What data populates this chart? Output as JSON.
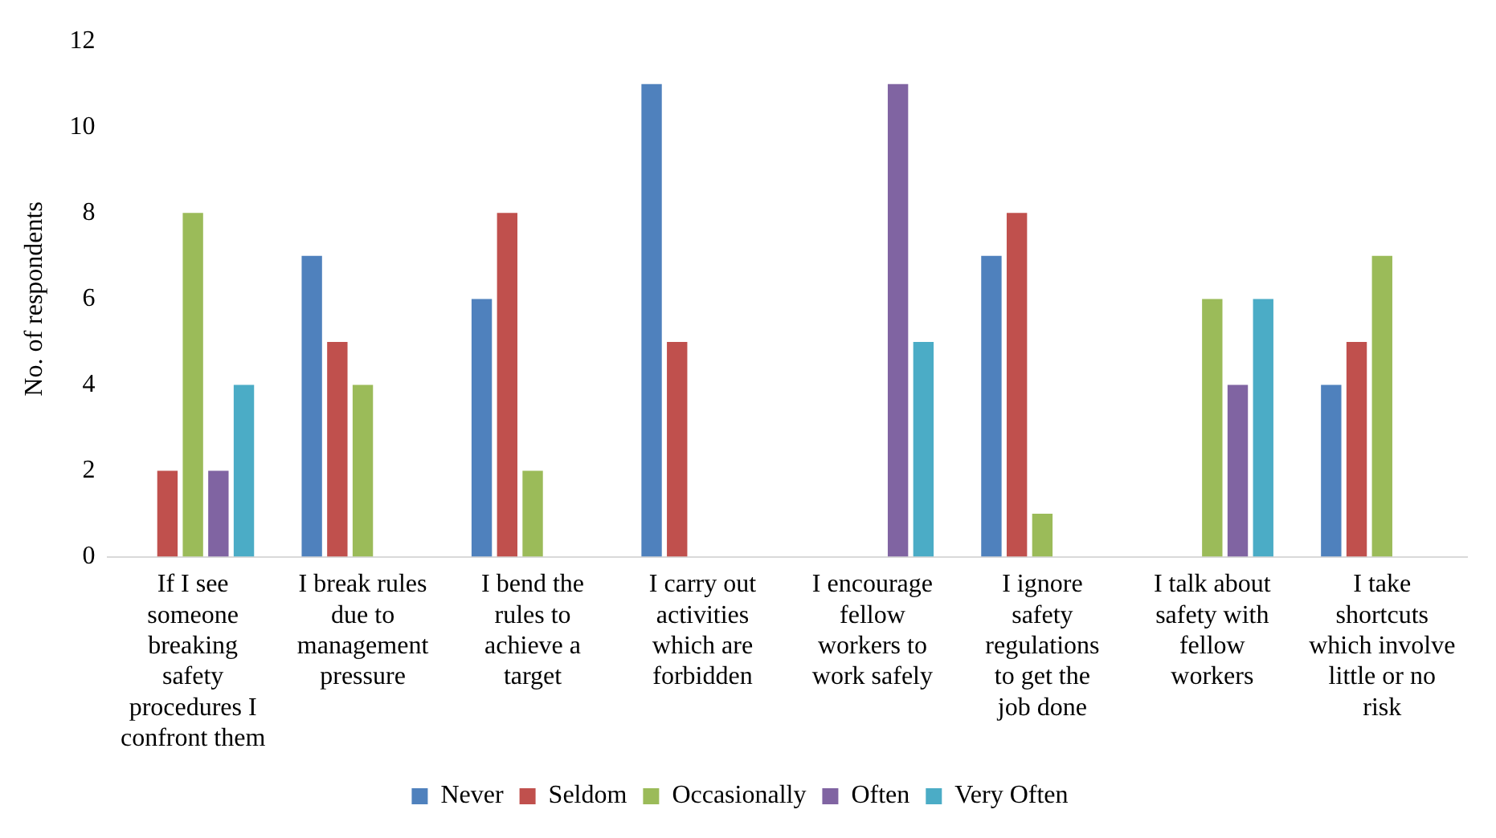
{
  "chart_data": {
    "type": "bar",
    "ylabel": "No. of respondents",
    "categories": [
      "If I see someone breaking safety procedures I confront them",
      "I break rules due to management pressure",
      "I bend the rules to achieve a target",
      "I carry out activities which are forbidden",
      "I encourage fellow workers to work safely",
      "I ignore safety regulations to get the job done",
      "I talk about safety with fellow workers",
      "I take shortcuts which involve little or no risk"
    ],
    "series": [
      {
        "name": "Never",
        "color": "#4f81bd",
        "values": [
          0,
          7,
          6,
          11,
          0,
          7,
          0,
          4
        ]
      },
      {
        "name": "Seldom",
        "color": "#c0504d",
        "values": [
          2,
          5,
          8,
          5,
          0,
          8,
          0,
          5
        ]
      },
      {
        "name": "Occasionally",
        "color": "#9bbb59",
        "values": [
          8,
          4,
          2,
          0,
          0,
          1,
          6,
          7
        ]
      },
      {
        "name": "Often",
        "color": "#8064a2",
        "values": [
          2,
          0,
          0,
          0,
          11,
          0,
          4,
          0
        ]
      },
      {
        "name": "Very Often",
        "color": "#4bacc6",
        "values": [
          4,
          0,
          0,
          0,
          5,
          0,
          6,
          0
        ]
      }
    ],
    "ylim": [
      0,
      12
    ],
    "yticks": [
      0,
      2,
      4,
      6,
      8,
      10,
      12
    ],
    "grid": false,
    "legend": "bottom"
  }
}
